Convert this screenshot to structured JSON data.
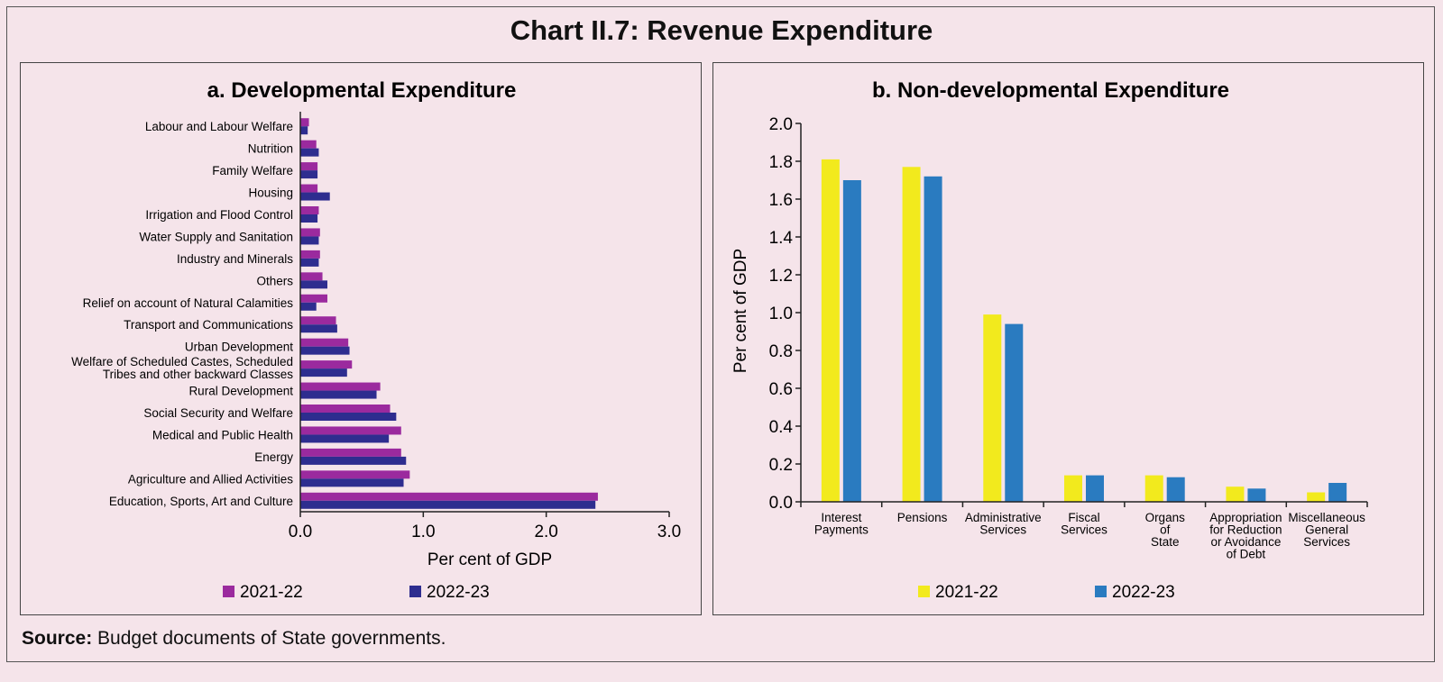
{
  "title": "Chart II.7: Revenue Expenditure",
  "source_label": "Source:",
  "source_text": "Budget documents of State governments.",
  "colors": {
    "a_2021": "#9b2a9e",
    "a_2022": "#2e2d8f",
    "b_2021": "#f2ea1d",
    "b_2022": "#2a7bc0"
  },
  "chart_data": [
    {
      "type": "bar",
      "orientation": "horizontal",
      "title": "a. Developmental Expenditure",
      "xlabel": "Per cent of GDP",
      "ylabel": "",
      "xlim": [
        0,
        3.0
      ],
      "ticks": [
        "0.0",
        "1.0",
        "2.0",
        "3.0"
      ],
      "tick_values": [
        0,
        1,
        2,
        3
      ],
      "legend_position": "bottom",
      "categories": [
        "Labour and Labour Welfare",
        "Nutrition",
        "Family Welfare",
        "Housing",
        "Irrigation and Flood Control",
        "Water Supply and Sanitation",
        "Industry and Minerals",
        "Others",
        "Relief on account of Natural Calamities",
        "Transport and Communications",
        "Urban Development",
        "Welfare of Scheduled Castes, Scheduled Tribes and other backward Classes",
        "Rural Development",
        "Social Security and Welfare",
        "Medical and Public Health",
        "Energy",
        "Agriculture and Allied Activities",
        "Education, Sports, Art and Culture"
      ],
      "series": [
        {
          "name": "2021-22",
          "values": [
            0.07,
            0.13,
            0.14,
            0.14,
            0.15,
            0.16,
            0.16,
            0.18,
            0.22,
            0.29,
            0.39,
            0.42,
            0.65,
            0.73,
            0.82,
            0.82,
            0.89,
            2.42
          ]
        },
        {
          "name": "2022-23",
          "values": [
            0.06,
            0.15,
            0.14,
            0.24,
            0.14,
            0.15,
            0.15,
            0.22,
            0.13,
            0.3,
            0.4,
            0.38,
            0.62,
            0.78,
            0.72,
            0.86,
            0.84,
            2.4
          ]
        }
      ]
    },
    {
      "type": "bar",
      "orientation": "vertical",
      "title": "b. Non-developmental Expenditure",
      "xlabel": "",
      "ylabel": "Per cent of GDP",
      "ylim": [
        0,
        2.0
      ],
      "ticks": [
        "0.0",
        "0.2",
        "0.4",
        "0.6",
        "0.8",
        "1.0",
        "1.2",
        "1.4",
        "1.6",
        "1.8",
        "2.0"
      ],
      "tick_values": [
        0,
        0.2,
        0.4,
        0.6,
        0.8,
        1.0,
        1.2,
        1.4,
        1.6,
        1.8,
        2.0
      ],
      "legend_position": "bottom",
      "categories": [
        [
          "Interest",
          "Payments"
        ],
        [
          "Pensions"
        ],
        [
          "Administrative",
          "Services"
        ],
        [
          "Fiscal",
          "Services"
        ],
        [
          "Organs",
          "of",
          "State"
        ],
        [
          "Appropriation",
          "for Reduction",
          "or Avoidance",
          "of Debt"
        ],
        [
          "Miscellaneous",
          "General",
          "Services"
        ]
      ],
      "series": [
        {
          "name": "2021-22",
          "values": [
            1.81,
            1.77,
            0.99,
            0.14,
            0.14,
            0.08,
            0.05
          ]
        },
        {
          "name": "2022-23",
          "values": [
            1.7,
            1.72,
            0.94,
            0.14,
            0.13,
            0.07,
            0.1
          ]
        }
      ]
    }
  ]
}
